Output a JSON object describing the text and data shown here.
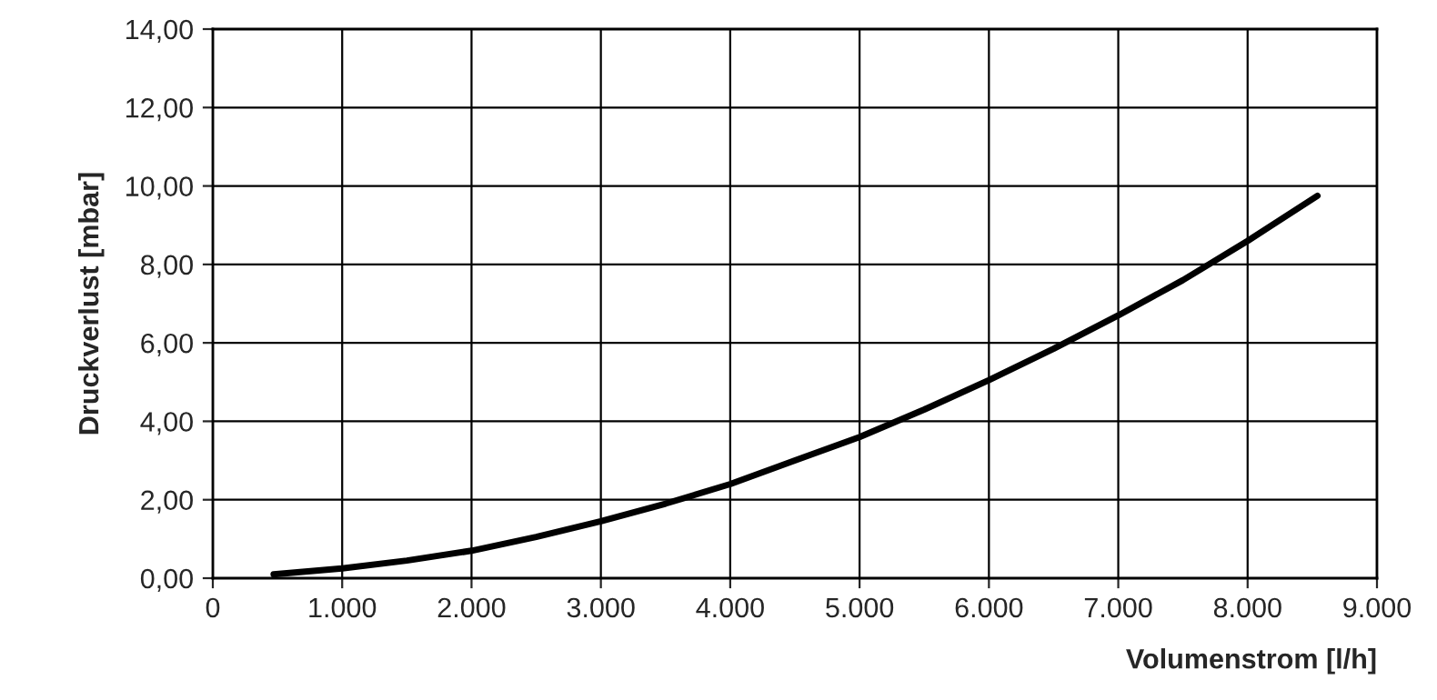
{
  "chart_data": {
    "type": "line",
    "xlabel": "Volumenstrom [l/h]",
    "ylabel": "Druckverlust [mbar]",
    "x": [
      470,
      1000,
      1500,
      2000,
      2500,
      3000,
      3500,
      4000,
      4500,
      5000,
      5500,
      6000,
      6500,
      7000,
      7500,
      8000,
      8540
    ],
    "series": [
      {
        "color": "#000000",
        "values": [
          0.1,
          0.25,
          0.45,
          0.7,
          1.05,
          1.45,
          1.9,
          2.4,
          3.0,
          3.6,
          4.3,
          5.05,
          5.85,
          6.7,
          7.6,
          8.6,
          9.75
        ]
      }
    ],
    "xlim": [
      0,
      9000
    ],
    "ylim": [
      0,
      14
    ],
    "xticks": [
      0,
      {
        "value": 1000,
        "label": "1.000"
      },
      {
        "value": 2000,
        "label": "2.000"
      },
      {
        "value": 3000,
        "label": "3.000"
      },
      {
        "value": 4000,
        "label": "4.000"
      },
      {
        "value": 5000,
        "label": "5.000"
      },
      {
        "value": 6000,
        "label": "6.000"
      },
      {
        "value": 7000,
        "label": "7.000"
      },
      {
        "value": 8000,
        "label": "8.000"
      },
      {
        "value": 9000,
        "label": "9.000"
      }
    ],
    "yticks": [
      {
        "value": 0,
        "label": "0,00"
      },
      {
        "value": 2,
        "label": "2,00"
      },
      {
        "value": 4,
        "label": "4,00"
      },
      {
        "value": 6,
        "label": "6,00"
      },
      {
        "value": 8,
        "label": "8,00"
      },
      {
        "value": 10,
        "label": "10,00"
      },
      {
        "value": 12,
        "label": "12,00"
      },
      {
        "value": 14,
        "label": "14,00"
      }
    ],
    "grid": true,
    "marker": "none",
    "line_style": "solid"
  }
}
